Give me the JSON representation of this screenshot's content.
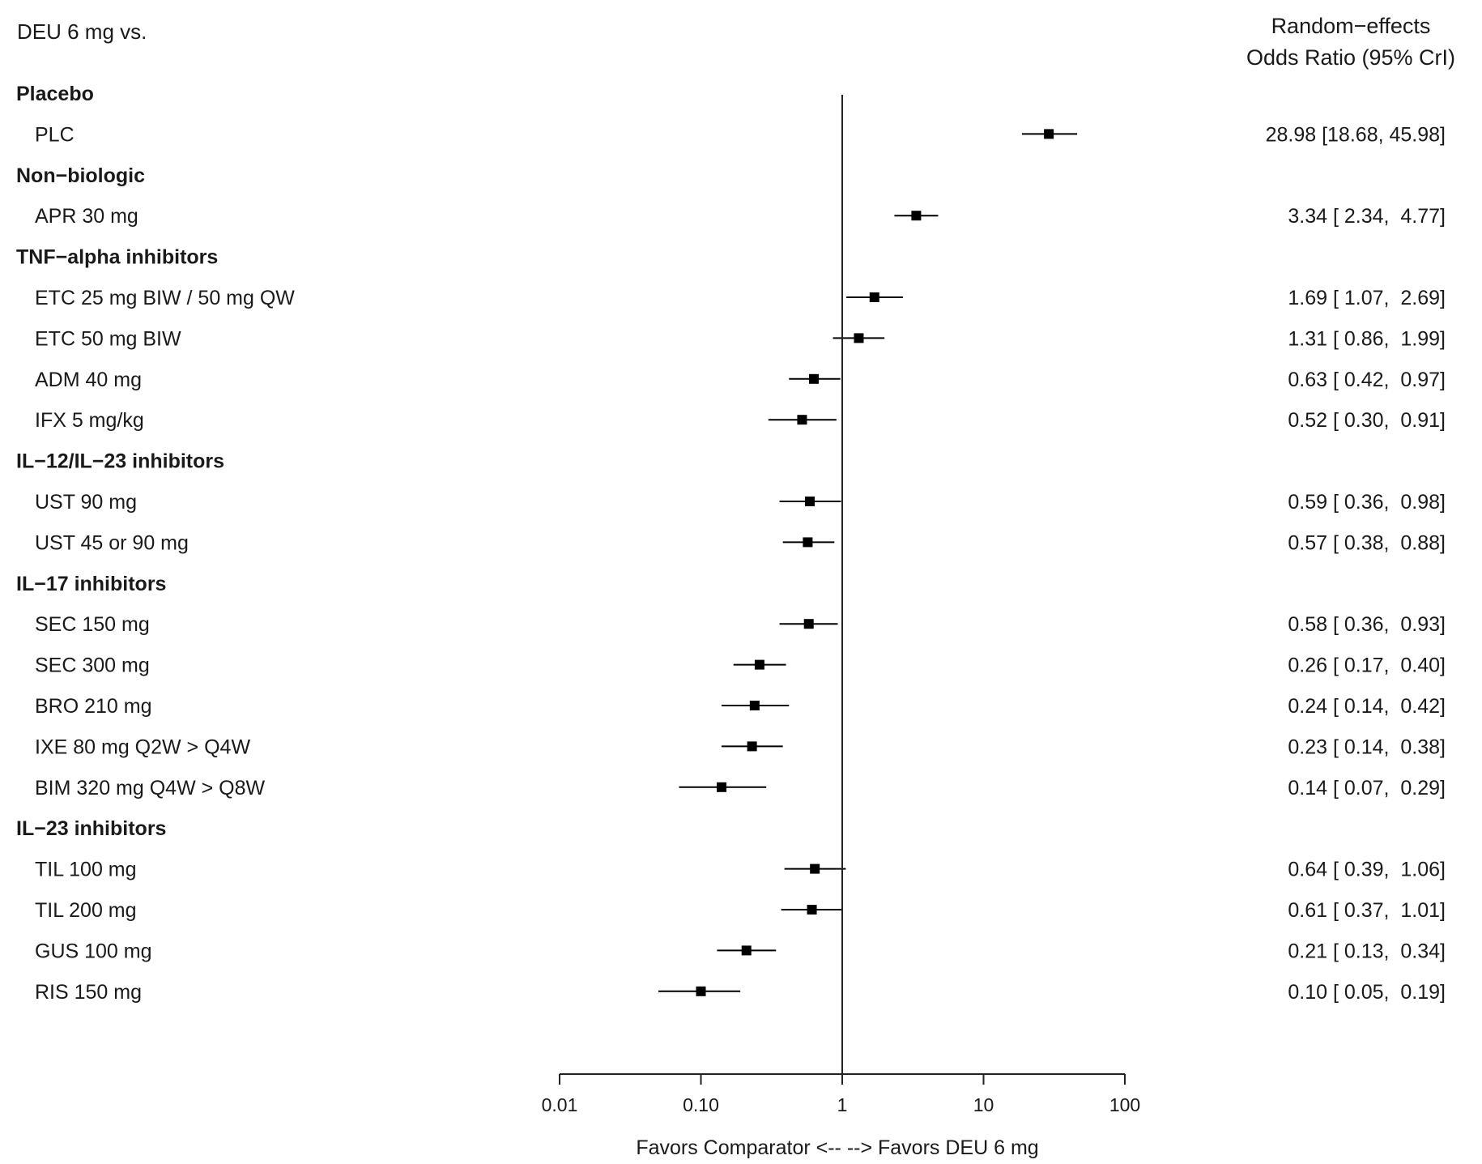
{
  "chart_data": {
    "type": "forest",
    "title": "DEU 6 mg vs.",
    "estimate_header": [
      "Random−effects",
      "Odds Ratio (95% CrI)"
    ],
    "xlabel": "Favors Comparator <-- --> Favors DEU 6 mg",
    "x_scale": "log",
    "xlim": [
      0.01,
      100
    ],
    "reference_line": 1,
    "x_ticks": [
      0.01,
      0.1,
      1,
      10,
      100
    ],
    "x_tick_labels": [
      "0.01",
      "0.10",
      "1",
      "10",
      "100"
    ],
    "marker_color": "#000000",
    "groups": [
      {
        "name": "Placebo",
        "items": [
          {
            "label": "PLC",
            "or": 28.98,
            "lo": 18.68,
            "hi": 45.98,
            "text": "28.98 [18.68, 45.98]"
          }
        ]
      },
      {
        "name": "Non−biologic",
        "items": [
          {
            "label": "APR 30 mg",
            "or": 3.34,
            "lo": 2.34,
            "hi": 4.77,
            "text": "3.34 [ 2.34,  4.77]"
          }
        ]
      },
      {
        "name": "TNF−alpha inhibitors",
        "items": [
          {
            "label": "ETC 25 mg BIW / 50 mg QW",
            "or": 1.69,
            "lo": 1.07,
            "hi": 2.69,
            "text": "1.69 [ 1.07,  2.69]"
          },
          {
            "label": "ETC 50 mg BIW",
            "or": 1.31,
            "lo": 0.86,
            "hi": 1.99,
            "text": "1.31 [ 0.86,  1.99]"
          },
          {
            "label": "ADM 40 mg",
            "or": 0.63,
            "lo": 0.42,
            "hi": 0.97,
            "text": "0.63 [ 0.42,  0.97]"
          },
          {
            "label": "IFX 5 mg/kg",
            "or": 0.52,
            "lo": 0.3,
            "hi": 0.91,
            "text": "0.52 [ 0.30,  0.91]"
          }
        ]
      },
      {
        "name": "IL−12/IL−23 inhibitors",
        "items": [
          {
            "label": "UST 90 mg",
            "or": 0.59,
            "lo": 0.36,
            "hi": 0.98,
            "text": "0.59 [ 0.36,  0.98]"
          },
          {
            "label": "UST 45 or 90 mg",
            "or": 0.57,
            "lo": 0.38,
            "hi": 0.88,
            "text": "0.57 [ 0.38,  0.88]"
          }
        ]
      },
      {
        "name": "IL−17 inhibitors",
        "items": [
          {
            "label": "SEC 150 mg",
            "or": 0.58,
            "lo": 0.36,
            "hi": 0.93,
            "text": "0.58 [ 0.36,  0.93]"
          },
          {
            "label": "SEC 300 mg",
            "or": 0.26,
            "lo": 0.17,
            "hi": 0.4,
            "text": "0.26 [ 0.17,  0.40]"
          },
          {
            "label": "BRO 210 mg",
            "or": 0.24,
            "lo": 0.14,
            "hi": 0.42,
            "text": "0.24 [ 0.14,  0.42]"
          },
          {
            "label": "IXE 80 mg Q2W > Q4W",
            "or": 0.23,
            "lo": 0.14,
            "hi": 0.38,
            "text": "0.23 [ 0.14,  0.38]"
          },
          {
            "label": "BIM 320 mg Q4W > Q8W",
            "or": 0.14,
            "lo": 0.07,
            "hi": 0.29,
            "text": "0.14 [ 0.07,  0.29]"
          }
        ]
      },
      {
        "name": "IL−23 inhibitors",
        "items": [
          {
            "label": "TIL 100 mg",
            "or": 0.64,
            "lo": 0.39,
            "hi": 1.06,
            "text": "0.64 [ 0.39,  1.06]"
          },
          {
            "label": "TIL 200 mg",
            "or": 0.61,
            "lo": 0.37,
            "hi": 1.01,
            "text": "0.61 [ 0.37,  1.01]"
          },
          {
            "label": "GUS 100 mg",
            "or": 0.21,
            "lo": 0.13,
            "hi": 0.34,
            "text": "0.21 [ 0.13,  0.34]"
          },
          {
            "label": "RIS 150 mg",
            "or": 0.1,
            "lo": 0.05,
            "hi": 0.19,
            "text": "0.10 [ 0.05,  0.19]"
          }
        ]
      }
    ]
  }
}
